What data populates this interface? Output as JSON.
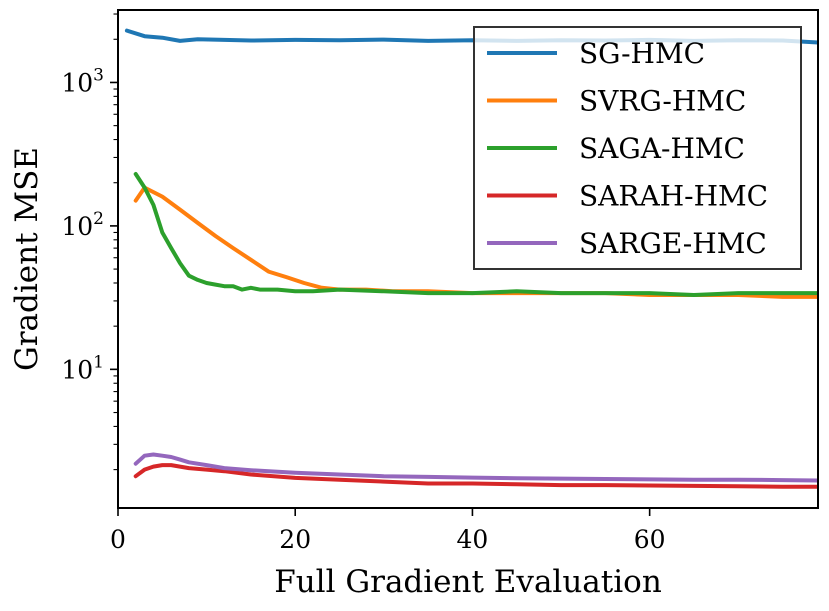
{
  "chart_data": {
    "type": "line",
    "title": "",
    "xlabel": "Full Gradient Evaluation",
    "ylabel": "Gradient MSE",
    "yscale": "log",
    "xlim": [
      0,
      79
    ],
    "ylim": [
      1.08,
      3200
    ],
    "grid": false,
    "legend_position": "top-right",
    "x_ticks": [
      {
        "value": 0,
        "label": "0"
      },
      {
        "value": 20,
        "label": "20"
      },
      {
        "value": 40,
        "label": "40"
      },
      {
        "value": 60,
        "label": "60"
      }
    ],
    "y_ticks": [
      {
        "value": 10,
        "base": "10",
        "exp": "1"
      },
      {
        "value": 100,
        "base": "10",
        "exp": "2"
      },
      {
        "value": 1000,
        "base": "10",
        "exp": "3"
      }
    ],
    "series": [
      {
        "name": "SG-HMC",
        "color": "#1f77b4",
        "x": [
          1,
          3,
          5,
          7,
          9,
          12,
          15,
          20,
          25,
          30,
          35,
          40,
          45,
          50,
          55,
          60,
          65,
          70,
          75,
          79
        ],
        "values": [
          2300,
          2100,
          2050,
          1950,
          2000,
          1980,
          1960,
          1980,
          1970,
          1990,
          1950,
          1970,
          1950,
          1970,
          1960,
          1980,
          1950,
          1970,
          1960,
          1900
        ]
      },
      {
        "name": "SVRG-HMC",
        "color": "#ff7f0e",
        "x": [
          2,
          3,
          5,
          7,
          9,
          11,
          13,
          15,
          17,
          19,
          21,
          23,
          25,
          28,
          31,
          35,
          40,
          45,
          50,
          55,
          60,
          65,
          70,
          75,
          79
        ],
        "values": [
          150,
          185,
          160,
          130,
          105,
          85,
          70,
          58,
          48,
          44,
          40,
          37,
          36,
          36,
          35,
          35,
          34,
          34,
          34,
          34,
          33,
          33,
          33,
          32,
          32
        ]
      },
      {
        "name": "SAGA-HMC",
        "color": "#2ca02c",
        "x": [
          2,
          3,
          4,
          5,
          6,
          7,
          8,
          9,
          10,
          11,
          12,
          13,
          14,
          15,
          16,
          18,
          20,
          22,
          25,
          30,
          35,
          40,
          45,
          50,
          55,
          60,
          65,
          70,
          75,
          79
        ],
        "values": [
          230,
          185,
          140,
          90,
          70,
          55,
          45,
          42,
          40,
          39,
          38,
          38,
          36,
          37,
          36,
          36,
          35,
          35,
          36,
          35,
          34,
          34,
          35,
          34,
          34,
          34,
          33,
          34,
          34,
          34
        ]
      },
      {
        "name": "SARAH-HMC",
        "color": "#d62728",
        "x": [
          2,
          3,
          4,
          5,
          6,
          7,
          8,
          10,
          12,
          15,
          20,
          25,
          30,
          35,
          40,
          45,
          50,
          55,
          60,
          65,
          70,
          75,
          79
        ],
        "values": [
          1.8,
          2.0,
          2.1,
          2.15,
          2.15,
          2.1,
          2.05,
          2.0,
          1.95,
          1.85,
          1.75,
          1.7,
          1.65,
          1.6,
          1.6,
          1.58,
          1.56,
          1.56,
          1.55,
          1.54,
          1.53,
          1.52,
          1.52
        ]
      },
      {
        "name": "SARGE-HMC",
        "color": "#9467bd",
        "x": [
          2,
          3,
          4,
          5,
          6,
          7,
          8,
          10,
          12,
          15,
          20,
          25,
          30,
          35,
          40,
          45,
          50,
          55,
          60,
          65,
          70,
          75,
          79
        ],
        "values": [
          2.2,
          2.5,
          2.55,
          2.5,
          2.45,
          2.35,
          2.25,
          2.15,
          2.05,
          1.98,
          1.9,
          1.85,
          1.8,
          1.78,
          1.76,
          1.74,
          1.73,
          1.72,
          1.71,
          1.7,
          1.7,
          1.69,
          1.68
        ]
      }
    ]
  }
}
